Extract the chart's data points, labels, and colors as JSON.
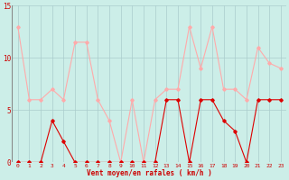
{
  "x": [
    0,
    1,
    2,
    3,
    4,
    5,
    6,
    7,
    8,
    9,
    10,
    11,
    12,
    13,
    14,
    15,
    16,
    17,
    18,
    19,
    20,
    21,
    22,
    23
  ],
  "wind_avg": [
    0,
    0,
    0,
    4,
    2,
    0,
    0,
    0,
    0,
    0,
    0,
    0,
    0,
    6,
    6,
    0,
    6,
    6,
    4,
    3,
    0,
    6,
    6,
    6
  ],
  "wind_gust": [
    13,
    6,
    6,
    7,
    6,
    11.5,
    11.5,
    6,
    4,
    0,
    6,
    0,
    6,
    7,
    7,
    13,
    9,
    13,
    7,
    7,
    6,
    11,
    9.5,
    9
  ],
  "avg_color": "#dd0000",
  "gust_color": "#ffaaaa",
  "bg_color": "#cceee8",
  "grid_color": "#aacccc",
  "xlabel": "Vent moyen/en rafales ( km/h )",
  "xlabel_color": "#cc0000",
  "tick_color": "#cc0000",
  "ylim": [
    0,
    15
  ],
  "yticks": [
    0,
    5,
    10,
    15
  ],
  "figsize": [
    3.2,
    2.0
  ],
  "dpi": 100
}
